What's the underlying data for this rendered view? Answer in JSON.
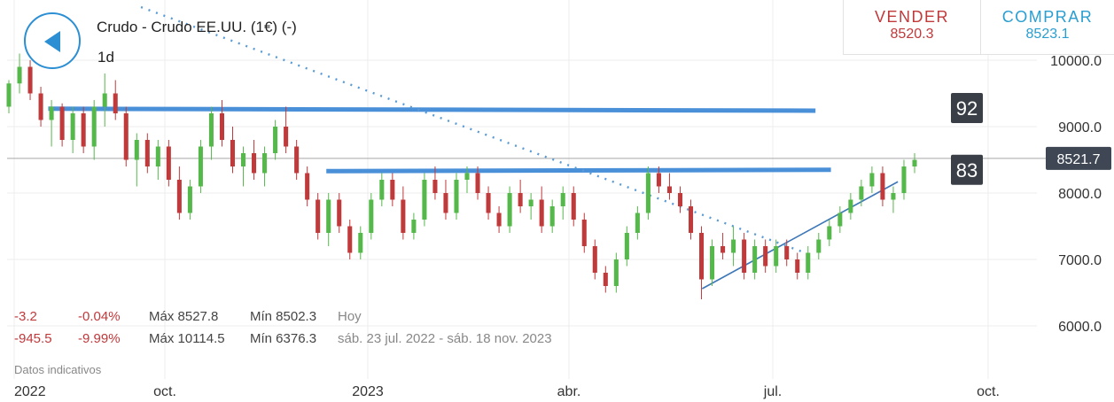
{
  "header": {
    "title": "Crudo - Crudo EE.UU. (1€) (-)",
    "interval": "1d",
    "back_icon": "back-arrow-icon"
  },
  "trade": {
    "sell_label": "VENDER",
    "sell_price": "8520.3",
    "buy_label": "COMPRAR",
    "buy_price": "8523.1",
    "sell_color": "#c0393b",
    "buy_color": "#2a9ed0"
  },
  "stats": {
    "day": {
      "change": "-3.2",
      "pct": "-0.04%",
      "max": "Máx 8527.8",
      "min": "Mín 8502.3",
      "period": "Hoy"
    },
    "range": {
      "change": "-945.5",
      "pct": "-9.99%",
      "max": "Máx 10114.5",
      "min": "Mín 6376.3",
      "period": "sáb. 23 jul. 2022 - sáb. 18 nov. 2023"
    }
  },
  "disclaimer": "Datos indicativos",
  "chart_data": {
    "type": "candlestick",
    "x_tick_labels": [
      "2022",
      "oct.",
      "2023",
      "abr.",
      "jul.",
      "oct."
    ],
    "y_tick_labels": [
      "10000.0",
      "9000.0",
      "8000.0",
      "7000.0",
      "6000.0"
    ],
    "ylim": [
      5700,
      10700
    ],
    "last_price": "8521.7",
    "last_price_value": 8521.7,
    "grid": true,
    "up_color": "#55b84a",
    "down_color": "#c0393b",
    "line_color": "#4a90d9",
    "tags": [
      {
        "label": "92",
        "value": 9280
      },
      {
        "label": "83",
        "value": 8350
      }
    ],
    "series": [
      {
        "name": "ohlc",
        "values": [
          [
            9300,
            9700,
            9200,
            9650
          ],
          [
            9650,
            10100,
            9500,
            9900
          ],
          [
            9900,
            10000,
            9400,
            9500
          ],
          [
            9500,
            9600,
            9000,
            9100
          ],
          [
            9100,
            9400,
            8700,
            9300
          ],
          [
            9300,
            9350,
            8700,
            8800
          ],
          [
            8800,
            9300,
            8600,
            9200
          ],
          [
            9200,
            9300,
            8600,
            8700
          ],
          [
            8700,
            9400,
            8500,
            9300
          ],
          [
            9300,
            9800,
            9000,
            9500
          ],
          [
            9500,
            9700,
            9100,
            9200
          ],
          [
            9200,
            9300,
            8400,
            8500
          ],
          [
            8500,
            8900,
            8100,
            8800
          ],
          [
            8800,
            8900,
            8300,
            8400
          ],
          [
            8400,
            8800,
            8200,
            8700
          ],
          [
            8700,
            8800,
            8100,
            8200
          ],
          [
            8200,
            8400,
            7600,
            7700
          ],
          [
            7700,
            8200,
            7600,
            8100
          ],
          [
            8100,
            8800,
            8000,
            8700
          ],
          [
            8700,
            9300,
            8500,
            9200
          ],
          [
            9200,
            9400,
            8700,
            8800
          ],
          [
            8800,
            9000,
            8300,
            8400
          ],
          [
            8400,
            8700,
            8100,
            8600
          ],
          [
            8600,
            8800,
            8200,
            8300
          ],
          [
            8300,
            8700,
            8100,
            8600
          ],
          [
            8600,
            9100,
            8500,
            9000
          ],
          [
            9000,
            9300,
            8600,
            8700
          ],
          [
            8700,
            8800,
            8200,
            8300
          ],
          [
            8300,
            8400,
            7800,
            7900
          ],
          [
            7900,
            8000,
            7300,
            7400
          ],
          [
            7400,
            8000,
            7200,
            7900
          ],
          [
            7900,
            8000,
            7400,
            7500
          ],
          [
            7500,
            7600,
            7000,
            7100
          ],
          [
            7100,
            7500,
            7000,
            7400
          ],
          [
            7400,
            8000,
            7300,
            7900
          ],
          [
            7900,
            8300,
            7800,
            8200
          ],
          [
            8200,
            8300,
            7800,
            7900
          ],
          [
            7900,
            8100,
            7300,
            7400
          ],
          [
            7400,
            7700,
            7300,
            7600
          ],
          [
            7600,
            8300,
            7500,
            8200
          ],
          [
            8200,
            8400,
            7900,
            8000
          ],
          [
            8000,
            8200,
            7600,
            7700
          ],
          [
            7700,
            8300,
            7600,
            8200
          ],
          [
            8200,
            8400,
            8000,
            8300
          ],
          [
            8300,
            8400,
            7900,
            8000
          ],
          [
            8000,
            8100,
            7600,
            7700
          ],
          [
            7700,
            7800,
            7400,
            7500
          ],
          [
            7500,
            8100,
            7400,
            8000
          ],
          [
            8000,
            8200,
            7700,
            7800
          ],
          [
            7800,
            8000,
            7600,
            7900
          ],
          [
            7900,
            8100,
            7400,
            7500
          ],
          [
            7500,
            7900,
            7400,
            7800
          ],
          [
            7800,
            8100,
            7600,
            8000
          ],
          [
            8000,
            8100,
            7500,
            7600
          ],
          [
            7600,
            7700,
            7100,
            7200
          ],
          [
            7200,
            7300,
            6700,
            6800
          ],
          [
            6800,
            6900,
            6500,
            6600
          ],
          [
            6600,
            7100,
            6500,
            7000
          ],
          [
            7000,
            7500,
            6900,
            7400
          ],
          [
            7400,
            7800,
            7300,
            7700
          ],
          [
            7700,
            8400,
            7600,
            8300
          ],
          [
            8300,
            8400,
            8000,
            8100
          ],
          [
            8100,
            8300,
            7900,
            8000
          ],
          [
            8000,
            8100,
            7700,
            7800
          ],
          [
            7800,
            7900,
            7300,
            7400
          ],
          [
            7400,
            7500,
            6400,
            6700
          ],
          [
            6700,
            7300,
            6600,
            7200
          ],
          [
            7200,
            7400,
            7000,
            7100
          ],
          [
            7100,
            7500,
            6900,
            7300
          ],
          [
            7300,
            7400,
            6700,
            6800
          ],
          [
            6800,
            7300,
            6700,
            7200
          ],
          [
            7200,
            7300,
            6800,
            6900
          ],
          [
            6900,
            7300,
            6800,
            7200
          ],
          [
            7200,
            7300,
            6900,
            7000
          ],
          [
            7000,
            7100,
            6700,
            6800
          ],
          [
            6800,
            7200,
            6700,
            7100
          ],
          [
            7100,
            7400,
            7000,
            7300
          ],
          [
            7300,
            7600,
            7200,
            7500
          ],
          [
            7500,
            7800,
            7400,
            7700
          ],
          [
            7700,
            8000,
            7600,
            7900
          ],
          [
            7900,
            8200,
            7800,
            8100
          ],
          [
            8100,
            8400,
            8000,
            8300
          ],
          [
            8300,
            8400,
            7800,
            7900
          ],
          [
            7900,
            8100,
            7700,
            8000
          ],
          [
            8000,
            8500,
            7900,
            8400
          ],
          [
            8400,
            8600,
            8300,
            8500
          ]
        ]
      }
    ],
    "lines": [
      {
        "name": "resistance-upper",
        "style": "solid",
        "from": [
          0.04,
          9270
        ],
        "to": [
          0.785,
          9240
        ]
      },
      {
        "name": "resistance-lower",
        "style": "solid",
        "from": [
          0.31,
          8330
        ],
        "to": [
          0.8,
          8350
        ]
      },
      {
        "name": "support-trend",
        "style": "thin",
        "from": [
          0.675,
          6560
        ],
        "to": [
          0.865,
          8170
        ]
      },
      {
        "name": "downtrend",
        "style": "dotted",
        "from": [
          0.13,
          10800
        ],
        "to": [
          0.775,
          7100
        ]
      }
    ]
  }
}
